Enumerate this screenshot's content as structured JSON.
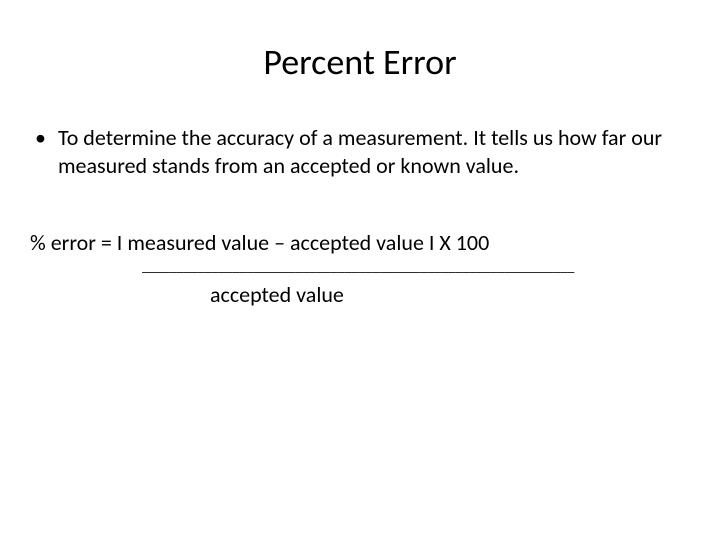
{
  "slide": {
    "title": "Percent Error",
    "title_fontsize": 36,
    "bullet_text": "To determine the accuracy of a measurement. It tells us how far our measured stands from an accepted or known value.",
    "bullet_fontsize": 22,
    "formula": {
      "line1": "% error = I  measured value – accepted value  I   X 100",
      "underline": "______________________________________________________________",
      "denominator": "accepted value"
    },
    "background_color": "#ffffff",
    "text_color": "#000000",
    "font_family": "Calibri"
  }
}
